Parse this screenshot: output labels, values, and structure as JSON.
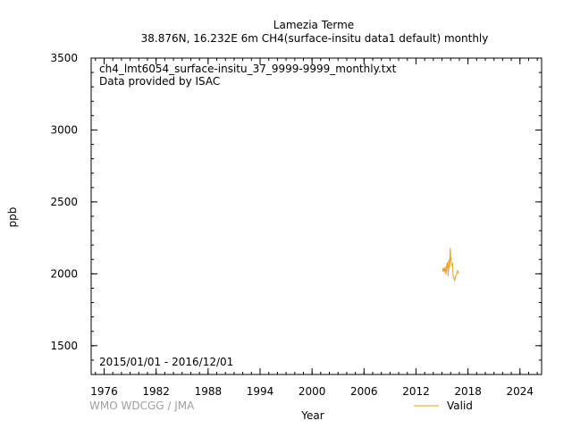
{
  "chart_data": {
    "type": "line",
    "title_line1": "Lamezia Terme",
    "title_line2": "38.876N, 16.232E 6m    CH4(surface-insitu data1 default) monthly",
    "annotation_file": "ch4_lmt6054_surface-insitu_37_9999-9999_monthly.txt",
    "annotation_provider": "Data provided by ISAC",
    "annotation_period": "2015/01/01 - 2016/12/01",
    "xlabel": "Year",
    "ylabel": "ppb",
    "credit": "WMO WDCGG / JMA",
    "xlim": [
      1974.5,
      2026.5
    ],
    "ylim": [
      1300,
      3500
    ],
    "x_ticks": [
      1976,
      1982,
      1988,
      1994,
      2000,
      2006,
      2012,
      2018,
      2024
    ],
    "y_ticks": [
      1500,
      2000,
      2500,
      3000,
      3500
    ],
    "x_minor_step": 1,
    "y_minor_step": 100,
    "legend_position": "bottom-right",
    "series": [
      {
        "name": "Valid",
        "color": "#e8a317",
        "x": [
          2015.04,
          2015.12,
          2015.21,
          2015.29,
          2015.37,
          2015.46,
          2015.54,
          2015.62,
          2015.71,
          2015.79,
          2015.87,
          2015.96,
          2016.04,
          2016.12,
          2016.21,
          2016.29,
          2016.37,
          2016.46,
          2016.54,
          2016.62,
          2016.71,
          2016.79,
          2016.87,
          2016.96
        ],
        "y": [
          2040,
          2020,
          2035,
          2010,
          2050,
          1995,
          2060,
          2080,
          1985,
          2100,
          2040,
          2180,
          2090,
          2060,
          2070,
          1990,
          1970,
          1955,
          1975,
          1990,
          2000,
          2025,
          2010,
          2000
        ]
      }
    ]
  }
}
